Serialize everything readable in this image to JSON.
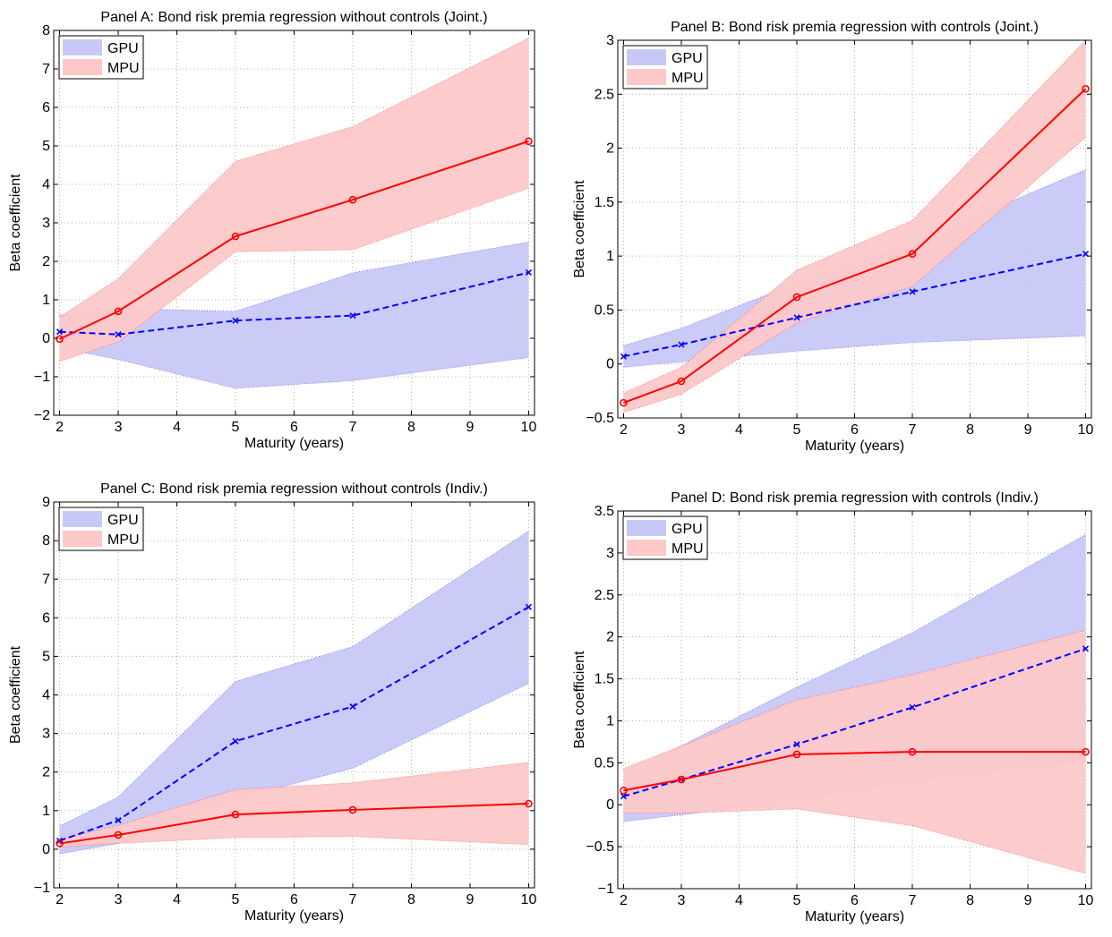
{
  "figure": {
    "panels": [
      "Panel A",
      "Panel B",
      "Panel C",
      "Panel D"
    ]
  },
  "colors": {
    "gpu_fill": "#c8c8f7",
    "mpu_fill": "#fcc8c8",
    "gpu_line": "#0000ff",
    "mpu_line": "#ff0000",
    "grid": "#b0b0b0"
  },
  "chart_data": [
    {
      "type": "line",
      "title": "Panel A: Bond risk premia regression without controls (Joint.)",
      "xlabel": "Maturity (years)",
      "ylabel": "Beta coefficient",
      "x": [
        2,
        3,
        5,
        7,
        10
      ],
      "xlim": [
        1.9,
        10.1
      ],
      "ylim": [
        -2,
        8
      ],
      "xticks": [
        2,
        3,
        4,
        5,
        6,
        7,
        8,
        9,
        10
      ],
      "yticks": [
        -2,
        -1,
        0,
        1,
        2,
        3,
        4,
        5,
        6,
        7,
        8
      ],
      "grid": true,
      "legend": "top-left",
      "series": [
        {
          "name": "GPU",
          "values": [
            0.17,
            0.1,
            0.46,
            0.59,
            1.71
          ],
          "lower": [
            -0.25,
            -0.55,
            -1.3,
            -1.1,
            -0.5
          ],
          "upper": [
            0.6,
            0.78,
            0.7,
            1.7,
            2.5
          ],
          "line_style": "dashed",
          "marker": "x"
        },
        {
          "name": "MPU",
          "values": [
            -0.02,
            0.7,
            2.65,
            3.6,
            5.12
          ],
          "lower": [
            -0.6,
            -0.1,
            2.25,
            2.3,
            3.9
          ],
          "upper": [
            0.55,
            1.55,
            4.6,
            5.5,
            7.8
          ],
          "line_style": "solid",
          "marker": "o"
        }
      ]
    },
    {
      "type": "line",
      "title": "Panel B: Bond risk premia regression with controls (Joint.)",
      "xlabel": "Maturity (years)",
      "ylabel": "Beta coefficient",
      "x": [
        2,
        3,
        5,
        7,
        10
      ],
      "xlim": [
        1.9,
        10.1
      ],
      "ylim": [
        -0.5,
        3
      ],
      "xticks": [
        2,
        3,
        4,
        5,
        6,
        7,
        8,
        9,
        10
      ],
      "yticks": [
        -0.5,
        0,
        0.5,
        1,
        1.5,
        2,
        2.5,
        3
      ],
      "grid": true,
      "legend": "top-left",
      "series": [
        {
          "name": "GPU",
          "values": [
            0.07,
            0.18,
            0.43,
            0.67,
            1.02
          ],
          "lower": [
            -0.03,
            0.02,
            0.12,
            0.2,
            0.26
          ],
          "upper": [
            0.17,
            0.33,
            0.75,
            1.12,
            1.8
          ],
          "line_style": "dashed",
          "marker": "x"
        },
        {
          "name": "MPU",
          "values": [
            -0.36,
            -0.16,
            0.62,
            1.02,
            2.55
          ],
          "lower": [
            -0.45,
            -0.28,
            0.38,
            0.72,
            2.1
          ],
          "upper": [
            -0.27,
            -0.03,
            0.87,
            1.33,
            3.0
          ],
          "line_style": "solid",
          "marker": "o"
        }
      ]
    },
    {
      "type": "line",
      "title": "Panel C: Bond risk premia regression without controls (Indiv.)",
      "xlabel": "Maturity (years)",
      "ylabel": "Beta coefficient",
      "x": [
        2,
        3,
        5,
        7,
        10
      ],
      "xlim": [
        1.9,
        10.1
      ],
      "ylim": [
        -1,
        9
      ],
      "xticks": [
        2,
        3,
        4,
        5,
        6,
        7,
        8,
        9,
        10
      ],
      "yticks": [
        -1,
        0,
        1,
        2,
        3,
        4,
        5,
        6,
        7,
        8,
        9
      ],
      "grid": true,
      "legend": "top-left",
      "series": [
        {
          "name": "GPU",
          "values": [
            0.22,
            0.75,
            2.8,
            3.7,
            6.28
          ],
          "lower": [
            -0.12,
            0.15,
            1.3,
            2.1,
            4.3
          ],
          "upper": [
            0.6,
            1.35,
            4.35,
            5.25,
            8.25
          ],
          "line_style": "dashed",
          "marker": "x"
        },
        {
          "name": "MPU",
          "values": [
            0.15,
            0.37,
            0.9,
            1.02,
            1.18
          ],
          "lower": [
            0.05,
            0.15,
            0.3,
            0.33,
            0.12
          ],
          "upper": [
            0.25,
            0.62,
            1.55,
            1.72,
            2.25
          ],
          "line_style": "solid",
          "marker": "o"
        }
      ]
    },
    {
      "type": "line",
      "title": "Panel D: Bond risk premia regression with controls (Indiv.)",
      "xlabel": "Maturity (years)",
      "ylabel": "Beta coefficient",
      "x": [
        2,
        3,
        5,
        7,
        10
      ],
      "xlim": [
        1.9,
        10.1
      ],
      "ylim": [
        -1,
        3.5
      ],
      "xticks": [
        2,
        3,
        4,
        5,
        6,
        7,
        8,
        9,
        10
      ],
      "yticks": [
        -1,
        -0.5,
        0,
        0.5,
        1,
        1.5,
        2,
        2.5,
        3,
        3.5
      ],
      "grid": true,
      "legend": "top-left",
      "series": [
        {
          "name": "GPU",
          "values": [
            0.1,
            0.3,
            0.72,
            1.16,
            1.86
          ],
          "lower": [
            -0.2,
            -0.12,
            0.05,
            0.28,
            0.52
          ],
          "upper": [
            0.4,
            0.7,
            1.4,
            2.05,
            3.22
          ],
          "line_style": "dashed",
          "marker": "x"
        },
        {
          "name": "MPU",
          "values": [
            0.17,
            0.3,
            0.6,
            0.63,
            0.63
          ],
          "lower": [
            -0.1,
            -0.1,
            -0.05,
            -0.25,
            -0.82
          ],
          "upper": [
            0.43,
            0.7,
            1.25,
            1.55,
            2.08
          ],
          "line_style": "solid",
          "marker": "o"
        }
      ]
    }
  ]
}
